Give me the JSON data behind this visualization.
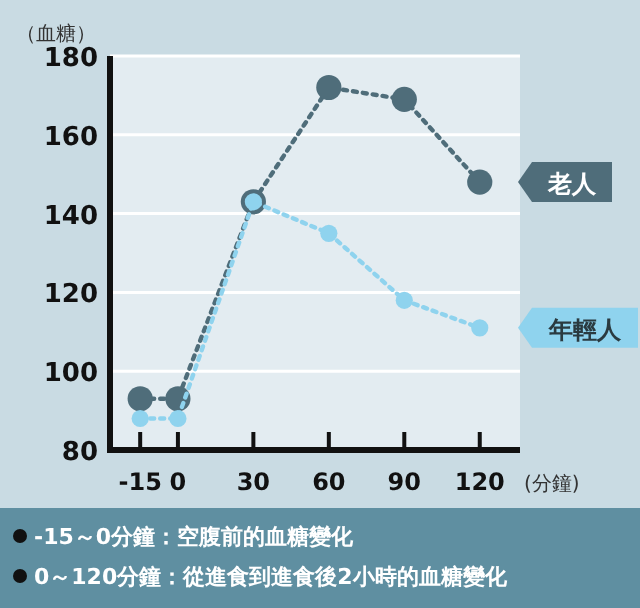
{
  "chart_data": {
    "type": "line",
    "ylabel": "（血糖）",
    "xlabel": "(分鐘)",
    "x": [
      -15,
      0,
      30,
      60,
      90,
      120
    ],
    "series": [
      {
        "name": "老人",
        "color": "#4f6d7a",
        "values": [
          93,
          93,
          143,
          172,
          169,
          148
        ]
      },
      {
        "name": "年輕人",
        "color": "#8fd3ee",
        "values": [
          88,
          88,
          143,
          135,
          118,
          111
        ]
      }
    ],
    "xlim": [
      -27,
      136
    ],
    "xticks": [
      -15,
      0,
      30,
      60,
      90,
      120
    ],
    "ylim": [
      80,
      180
    ],
    "yticks": [
      80,
      100,
      120,
      140,
      160,
      180
    ],
    "grid": "y",
    "marker": "circle",
    "line_style": "dotted",
    "legend": false,
    "annotations": [
      "-15～0分鐘：空腹前的血糖變化",
      "0～120分鐘：從進食到進食後2小時的血糖變化"
    ]
  }
}
